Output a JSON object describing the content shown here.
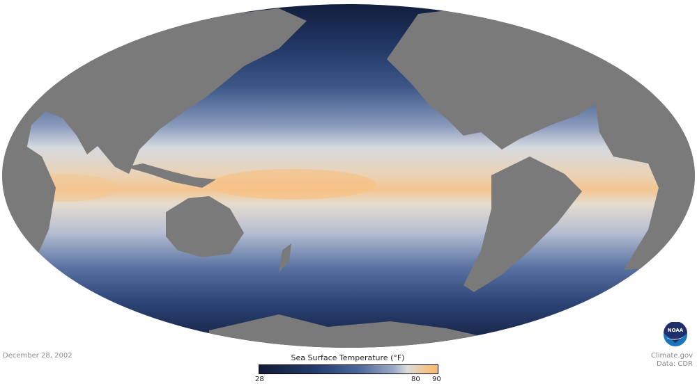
{
  "map": {
    "projection": "mollweide",
    "variable": "sea surface temperature",
    "land_color": "#7a7a7a",
    "ocean_colors": {
      "cold": "#101b38",
      "mid": "#4a6598",
      "neutral": "#dcdcdc",
      "warm": "#fbb867"
    }
  },
  "date": "December 28, 2002",
  "legend": {
    "title": "Sea Surface Temperature (°F)",
    "ticks": [
      "28",
      "80",
      "90"
    ],
    "min": 28,
    "max": 90
  },
  "credit": {
    "line1": "Climate.gov",
    "line2": "Data: CDR"
  },
  "logo": {
    "text": "NOAA"
  }
}
